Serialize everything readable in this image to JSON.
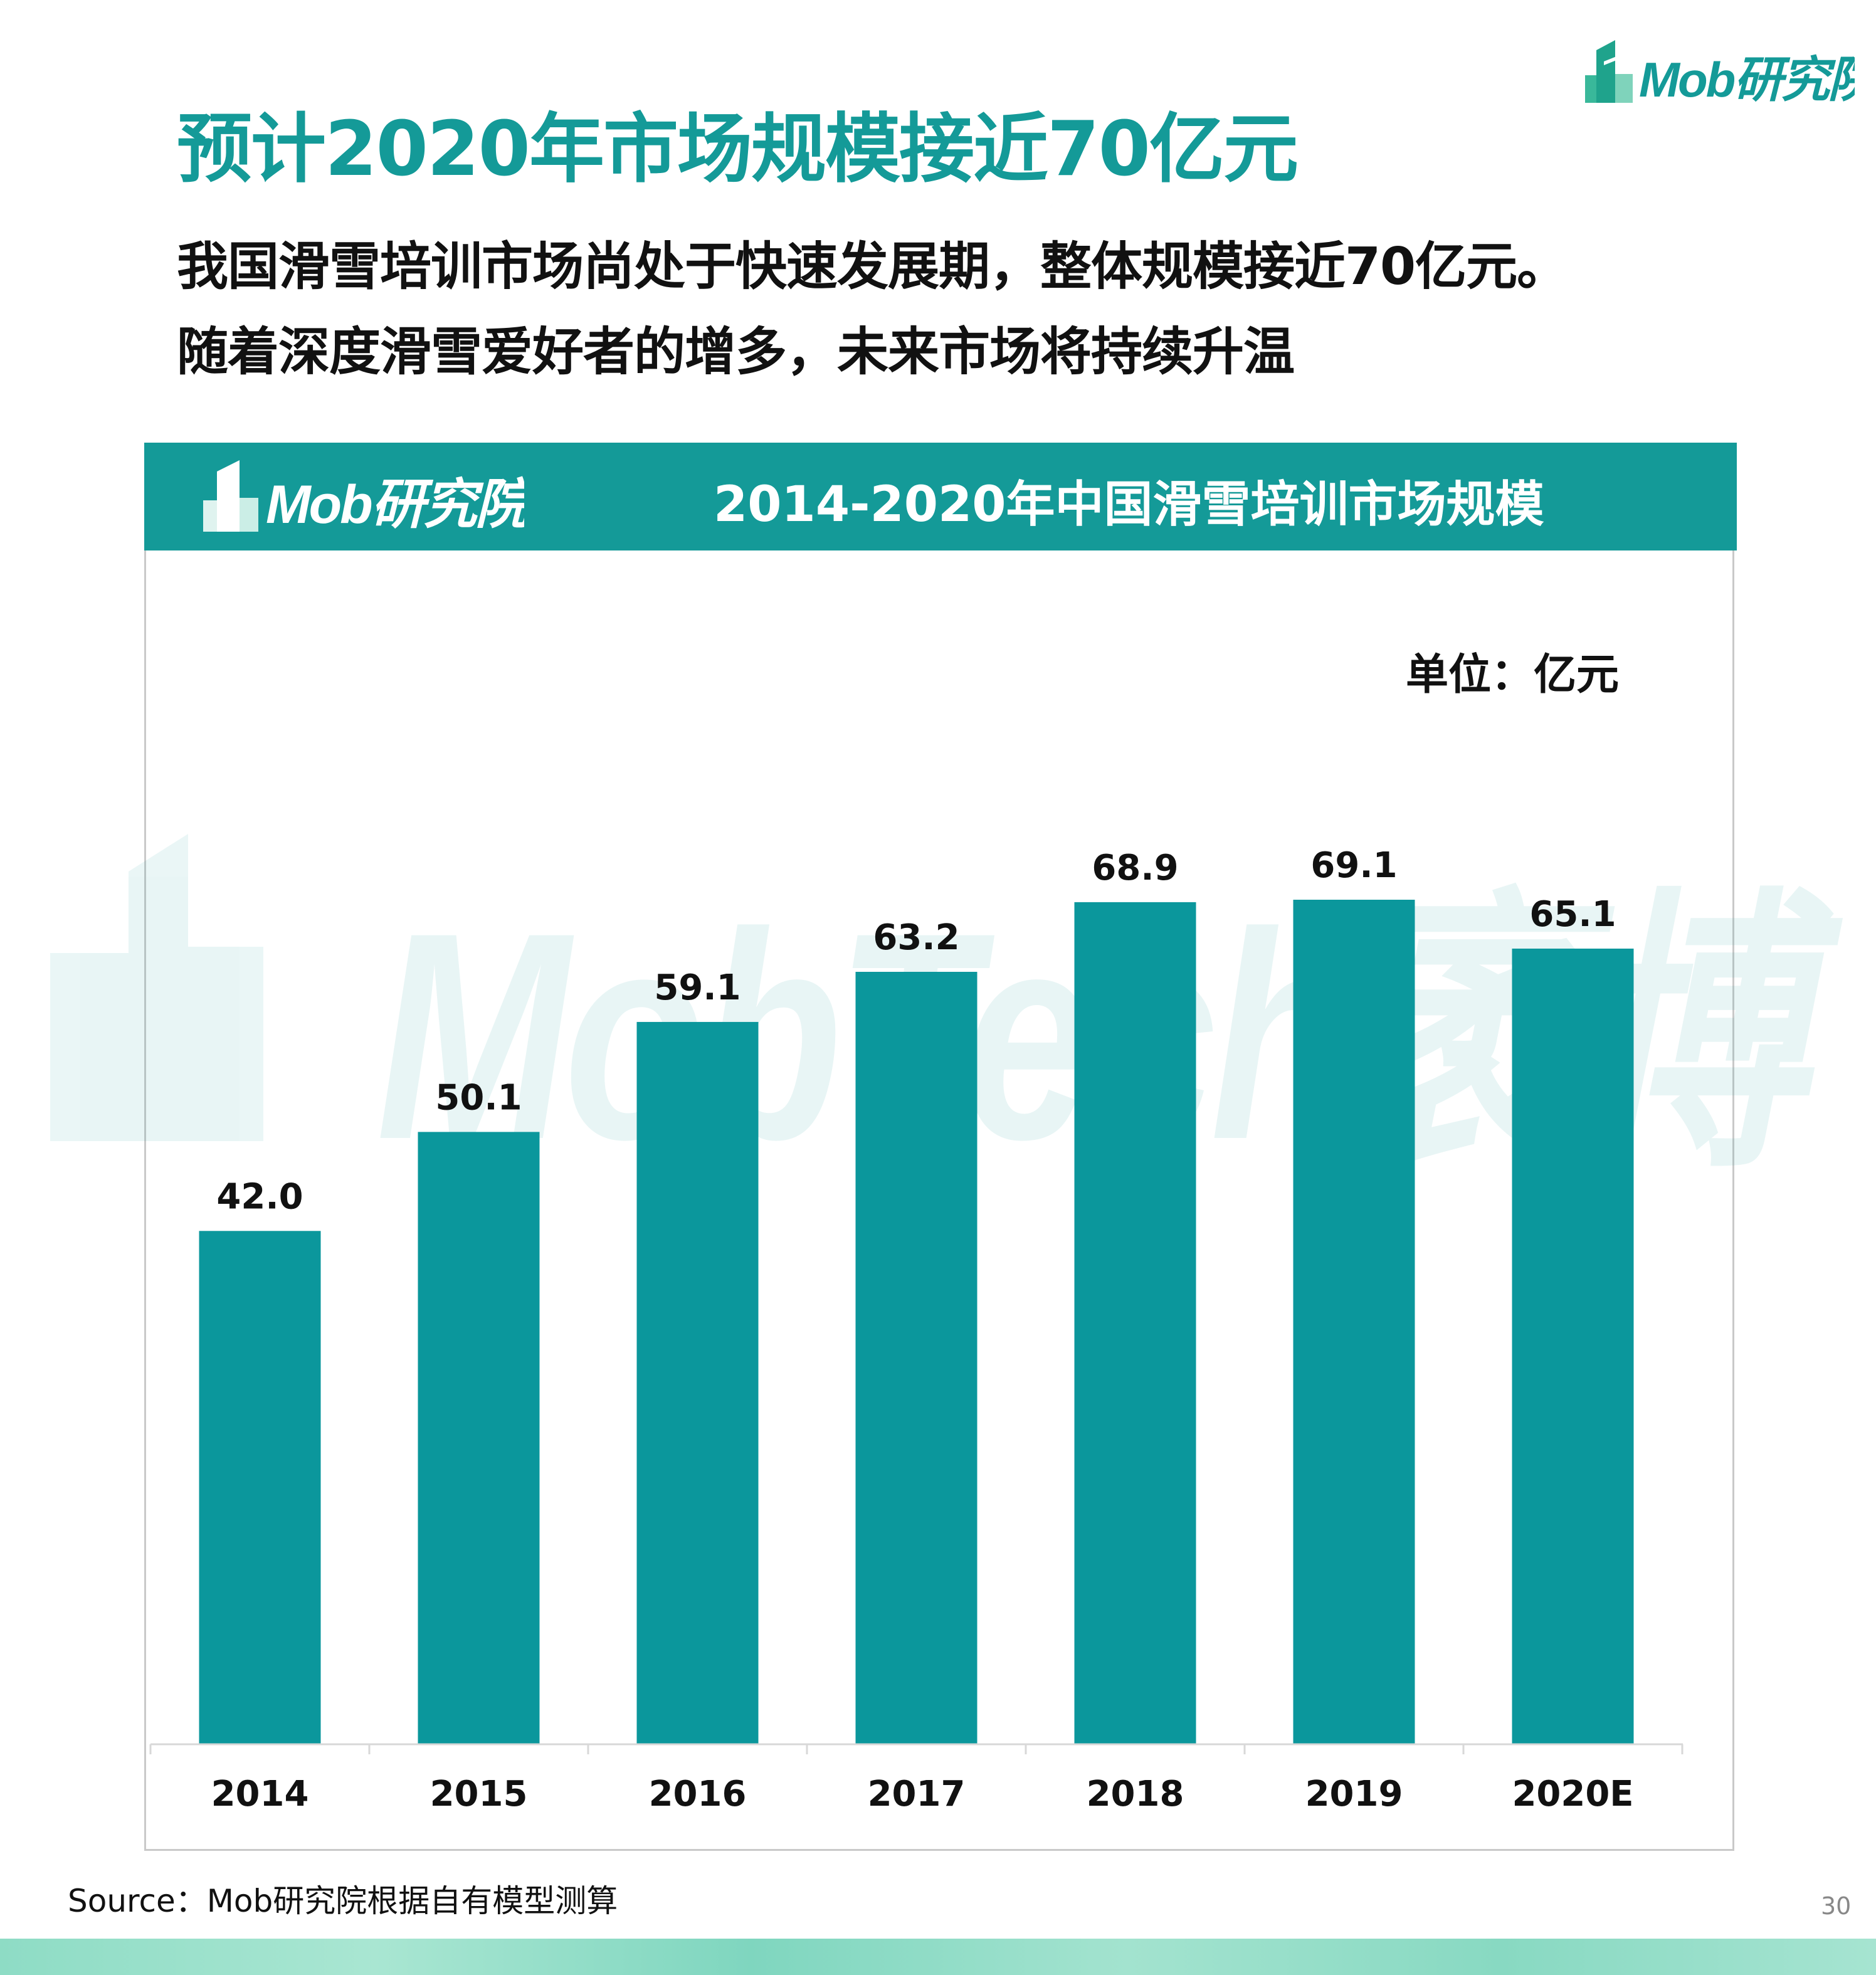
{
  "brand": {
    "logo_text": "Mob研究院",
    "icon": "building-logo-icon"
  },
  "headline": "预计2020年市场规模接近70亿元",
  "subtitle_lines": [
    "我国滑雪培训市场尚处于快速发展期，整体规模接近70亿元。",
    "随着深度滑雪爱好者的增多，未来市场将持续升温"
  ],
  "panel": {
    "logo_text": "Mob研究院",
    "watermark_text": "MobTech袤博"
  },
  "chart_data": {
    "type": "bar",
    "title": "2014-2020年中国滑雪培训市场规模",
    "unit_label": "单位：亿元",
    "categories": [
      "2014",
      "2015",
      "2016",
      "2017",
      "2018",
      "2019",
      "2020E"
    ],
    "values": [
      42.0,
      50.1,
      59.1,
      63.2,
      68.9,
      69.1,
      65.1
    ],
    "value_labels": [
      "42.0",
      "50.1",
      "59.1",
      "63.2",
      "68.9",
      "69.1",
      "65.1"
    ],
    "ylim": [
      0,
      80
    ],
    "grid": false,
    "bar_color": "#0b979c"
  },
  "source": "Source：Mob研究院根据自有模型测算",
  "page_number": "30",
  "colors": {
    "accent": "#149a98",
    "bar": "#0b979c",
    "footer": "#8edcc5"
  }
}
